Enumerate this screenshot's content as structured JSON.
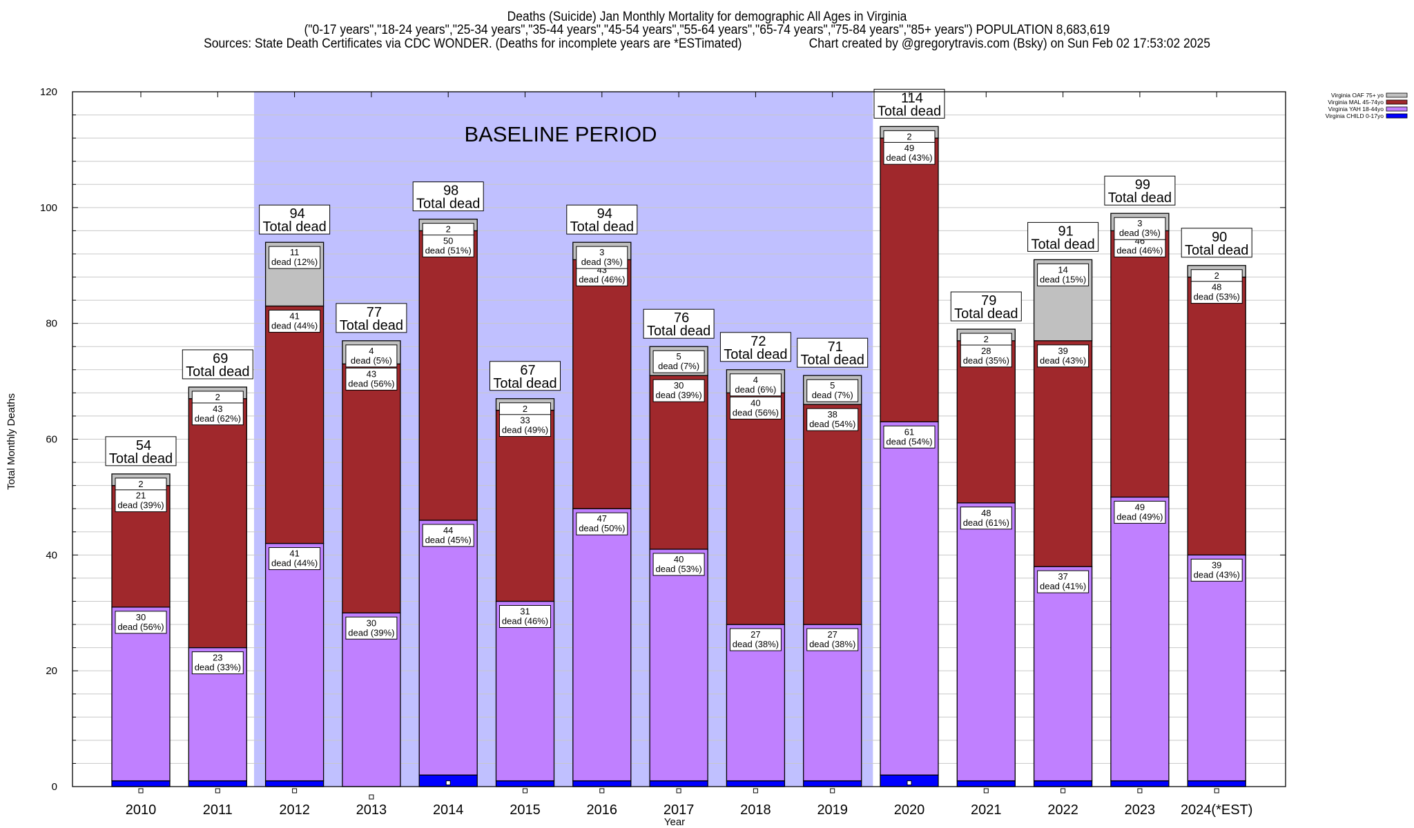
{
  "chart_data": {
    "type": "bar",
    "stacked": true,
    "title": "Deaths (Suicide) Jan Monthly Mortality for demographic All Ages in Virginia",
    "subtitle": "(\"0-17 years\",\"18-24 years\",\"25-34 years\",\"35-44 years\",\"45-54 years\",\"55-64 years\",\"65-74 years\",\"75-84 years\",\"85+ years\") POPULATION 8,683,619",
    "sources": "Sources: State Death Certificates via CDC WONDER. (Deaths for incomplete years are *ESTimated)",
    "credit": "Chart created by @gregorytravis.com (Bsky) on Sun Feb 02 17:53:02 2025",
    "xlabel": "Year",
    "ylabel": "Total Monthly Deaths",
    "ylim": [
      0,
      120
    ],
    "yticks": [
      "0",
      "20",
      "40",
      "60",
      "80",
      "100",
      "120"
    ],
    "grid": true,
    "legend_position": "top-right",
    "annotation": "BASELINE PERIOD",
    "baseline_range": [
      "2012",
      "2019"
    ],
    "total_suffix": "Total dead",
    "categories": [
      "2010",
      "2011",
      "2012",
      "2013",
      "2014",
      "2015",
      "2016",
      "2017",
      "2018",
      "2019",
      "2020",
      "2021",
      "2022",
      "2023",
      "2024(*EST)"
    ],
    "totals": [
      54,
      69,
      94,
      77,
      98,
      67,
      94,
      76,
      72,
      71,
      114,
      79,
      91,
      99,
      90
    ],
    "series": [
      {
        "name": "Virginia CHILD 0-17yo",
        "color": "#0000ff",
        "values": [
          1,
          1,
          1,
          0,
          2,
          1,
          1,
          1,
          1,
          1,
          2,
          1,
          1,
          1,
          1
        ],
        "labels": []
      },
      {
        "name": "Virginia YAH 18-44yo",
        "color": "#c080ff",
        "values": [
          30,
          23,
          41,
          30,
          44,
          31,
          47,
          40,
          27,
          27,
          61,
          48,
          37,
          49,
          39
        ],
        "labels": [
          "dead (56%)",
          "dead (33%)",
          "dead (44%)",
          "dead (39%)",
          "dead (45%)",
          "dead (46%)",
          "dead (50%)",
          "dead (53%)",
          "dead (38%)",
          "dead (38%)",
          "dead (54%)",
          "dead (61%)",
          "dead (41%)",
          "dead (49%)",
          "dead (43%)"
        ]
      },
      {
        "name": "Virginia MAL 45-74yo",
        "color": "#a0282c",
        "values": [
          21,
          43,
          41,
          43,
          50,
          33,
          43,
          30,
          40,
          38,
          49,
          28,
          39,
          46,
          48
        ],
        "labels": [
          "dead (39%)",
          "dead (62%)",
          "dead (44%)",
          "dead (56%)",
          "dead (51%)",
          "dead (49%)",
          "dead (46%)",
          "dead (39%)",
          "dead (56%)",
          "dead (54%)",
          "dead (43%)",
          "dead (35%)",
          "dead (43%)",
          "dead (46%)",
          "dead (53%)"
        ]
      },
      {
        "name": "Virginia OAF 75+ yo",
        "color": "#c0c0c0",
        "values": [
          2,
          2,
          11,
          4,
          2,
          2,
          3,
          5,
          4,
          5,
          2,
          2,
          14,
          3,
          2
        ],
        "labels": [
          "",
          "",
          "dead (12%)",
          "dead (5%)",
          "",
          "",
          "dead (3%)",
          "dead (7%)",
          "dead (6%)",
          "dead (7%)",
          "",
          "",
          "dead (15%)",
          "dead (3%)",
          ""
        ]
      }
    ],
    "colors": {
      "baseline_shade": "#c0c0ff",
      "grid": "#c8c8c8",
      "axis": "#000000"
    }
  }
}
